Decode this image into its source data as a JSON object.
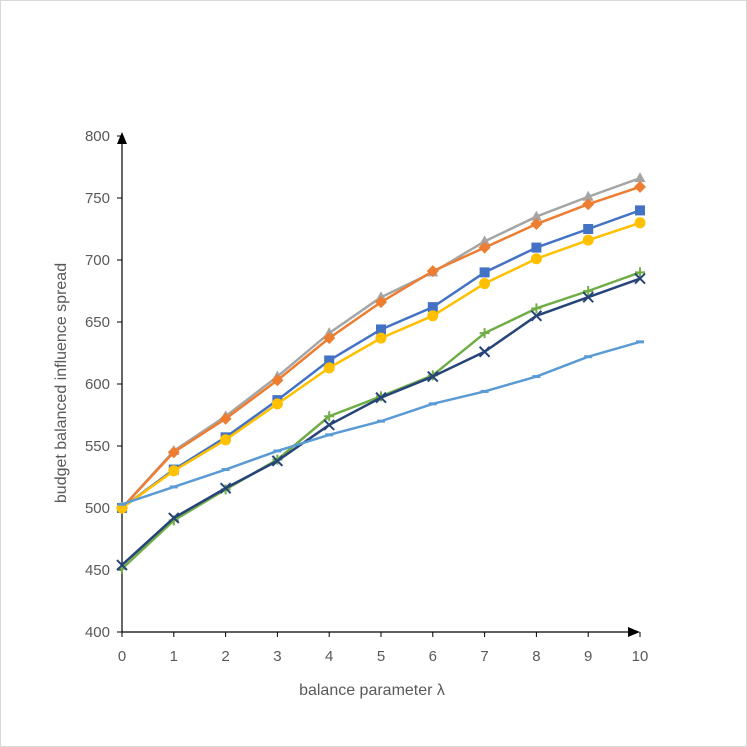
{
  "chart_data": {
    "type": "line",
    "title": "",
    "xlabel": "balance parameter λ",
    "ylabel": "budget balanced influence spread",
    "xlim": [
      0,
      10
    ],
    "ylim": [
      400,
      800
    ],
    "x_ticks": [
      "0",
      "1",
      "2",
      "3",
      "4",
      "5",
      "6",
      "7",
      "8",
      "9",
      "10"
    ],
    "y_ticks": [
      "400",
      "450",
      "500",
      "550",
      "600",
      "650",
      "700",
      "750",
      "800"
    ],
    "grid": false,
    "legend": "none",
    "x": [
      0,
      1,
      2,
      3,
      4,
      5,
      6,
      7,
      8,
      9,
      10
    ],
    "series": [
      {
        "color": "#a5a5a5",
        "marker": "triangle",
        "values": [
          500,
          546,
          574,
          606,
          641,
          670,
          690,
          715,
          735,
          751,
          766
        ]
      },
      {
        "color": "#ed7d31",
        "marker": "diamond",
        "values": [
          500,
          545,
          572,
          603,
          637,
          666,
          691,
          710,
          729,
          745,
          759
        ]
      },
      {
        "color": "#4472c4",
        "marker": "square",
        "values": [
          500,
          531,
          557,
          587,
          619,
          644,
          662,
          690,
          710,
          725,
          740
        ]
      },
      {
        "color": "#ffc000",
        "marker": "circle",
        "values": [
          500,
          530,
          555,
          584,
          613,
          637,
          655,
          681,
          701,
          716,
          730
        ]
      },
      {
        "color": "#70ad47",
        "marker": "plus",
        "values": [
          451,
          490,
          515,
          539,
          574,
          590,
          607,
          641,
          661,
          675,
          690
        ]
      },
      {
        "color": "#264478",
        "marker": "x",
        "values": [
          454,
          492,
          516,
          538,
          567,
          589,
          606,
          626,
          655,
          670,
          685
        ]
      },
      {
        "color": "#5b9bd5",
        "marker": "dash",
        "values": [
          503,
          517,
          531,
          546,
          559,
          570,
          584,
          594,
          606,
          622,
          634
        ]
      }
    ]
  }
}
